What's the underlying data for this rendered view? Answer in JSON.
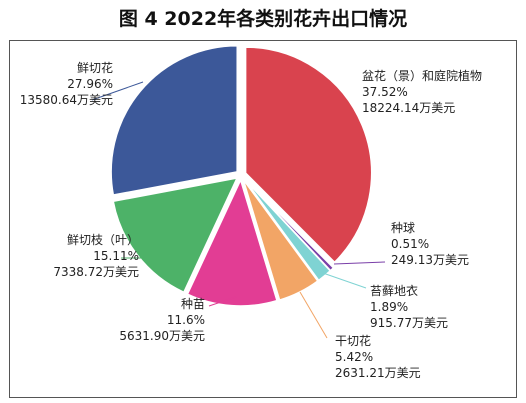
{
  "chart_data": {
    "type": "pie",
    "title": "图 4 2022年各类别花卉出口情况",
    "slices": [
      {
        "name": "盆花（景）和庭院植物",
        "percent": "37.52%",
        "value": "18224.14万美元",
        "pct": 37.52,
        "color": "#d9434e"
      },
      {
        "name": "种球",
        "percent": "0.51%",
        "value": "249.13万美元",
        "pct": 0.51,
        "color": "#7a3fa8"
      },
      {
        "name": "苔藓地衣",
        "percent": "1.89%",
        "value": "915.77万美元",
        "pct": 1.89,
        "color": "#7fd3d3"
      },
      {
        "name": "干切花",
        "percent": "5.42%",
        "value": "2631.21万美元",
        "pct": 5.42,
        "color": "#f2a566"
      },
      {
        "name": "种苗",
        "percent": "11.6%",
        "value": "5631.90万美元",
        "pct": 11.6,
        "color": "#e23d94"
      },
      {
        "name": "鲜切枝（叶）",
        "percent": "15.11%",
        "value": "7338.72万美元",
        "pct": 15.11,
        "color": "#4db268"
      },
      {
        "name": "鲜切花",
        "percent": "27.96%",
        "value": "13580.64万美元",
        "pct": 27.96,
        "color": "#3c5899"
      }
    ]
  }
}
